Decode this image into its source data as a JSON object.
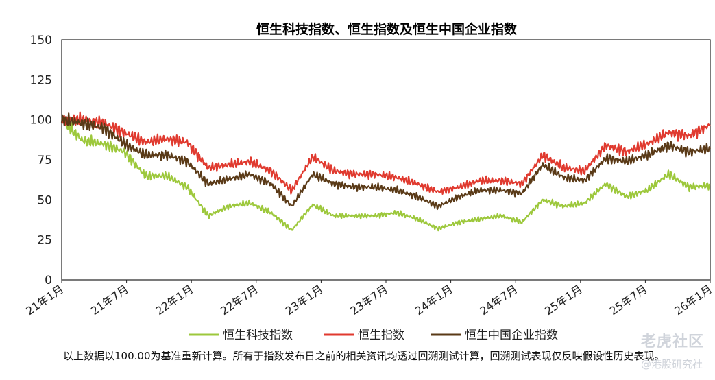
{
  "chart_data": {
    "type": "line",
    "title": "恒生科技指数、恒生指数及恒生中国企业指数",
    "y_ticks": [
      "150",
      "125",
      "100",
      "75",
      "50",
      "25",
      "0"
    ],
    "ylim": [
      0,
      150
    ],
    "x_ticks": [
      "21年1月",
      "21年7月",
      "22年1月",
      "22年7月",
      "23年1月",
      "23年7月",
      "24年1月",
      "24年7月",
      "25年1月",
      "25年7月",
      "26年1月"
    ],
    "x": [
      "21年1月",
      "21年3月",
      "21年5月",
      "21年7月",
      "21年9月",
      "21年11月",
      "22年1月",
      "22年3月",
      "22年5月",
      "22年7月",
      "22年9月",
      "22年11月",
      "23年1月",
      "23年3月",
      "23年5月",
      "23年7月",
      "23年9月",
      "23年11月",
      "24年1月",
      "24年3月",
      "24年5月",
      "24年7月",
      "24年9月",
      "24年10月",
      "24年11月",
      "25年1月",
      "25年3月",
      "25年5月",
      "25年7月",
      "25年9月",
      "25年11月",
      "26年1月"
    ],
    "series": [
      {
        "name": "恒生科技指数",
        "color": "#9dc83c",
        "values": [
          100,
          87,
          85,
          80,
          65,
          65,
          58,
          40,
          46,
          48,
          42,
          31,
          47,
          40,
          40,
          40,
          42,
          38,
          32,
          36,
          38,
          40,
          36,
          50,
          46,
          48,
          60,
          52,
          56,
          66,
          58,
          59
        ]
      },
      {
        "name": "恒生指数",
        "color": "#e03a2f",
        "values": [
          100,
          100,
          98,
          92,
          86,
          88,
          86,
          70,
          72,
          74,
          68,
          56,
          77,
          68,
          66,
          66,
          64,
          60,
          55,
          58,
          62,
          62,
          60,
          78,
          70,
          68,
          84,
          80,
          85,
          92,
          90,
          97
        ]
      },
      {
        "name": "恒生中国企业指数",
        "color": "#5a3a17",
        "values": [
          100,
          98,
          95,
          85,
          78,
          78,
          74,
          60,
          63,
          66,
          60,
          46,
          66,
          60,
          58,
          58,
          56,
          52,
          46,
          52,
          56,
          56,
          54,
          72,
          64,
          62,
          76,
          74,
          78,
          84,
          80,
          82
        ]
      }
    ]
  },
  "footnote": "以上数据以100.00为基准重新计算。所有于指数发布日之前的相关资讯均透过回溯测试计算，回溯测试表现仅反映假设性历史表现。",
  "watermark": "老虎社区",
  "watermark_sub": "@港股研究社"
}
